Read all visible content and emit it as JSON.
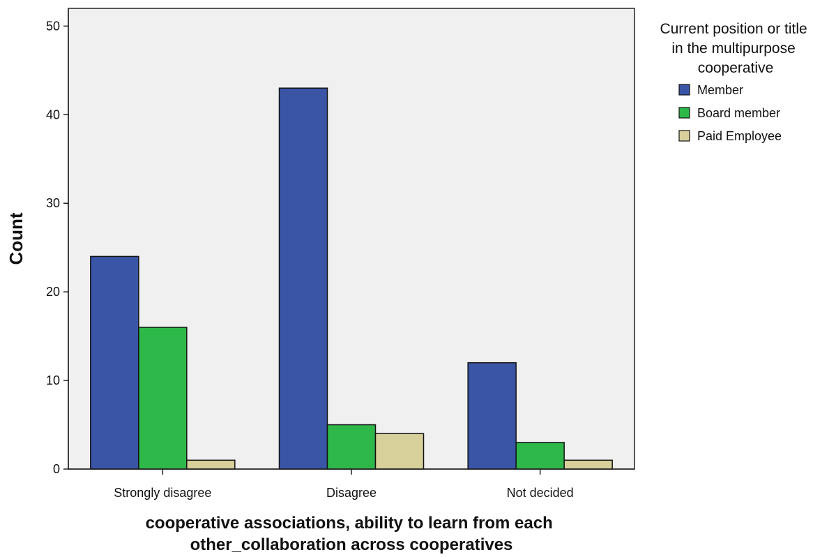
{
  "chart_data": {
    "type": "bar",
    "categories": [
      "Strongly disagree",
      "Disagree",
      "Not decided"
    ],
    "series": [
      {
        "name": "Member",
        "values": [
          24,
          43,
          12
        ],
        "color": "#3a55a6"
      },
      {
        "name": "Board member",
        "values": [
          16,
          5,
          3
        ],
        "color": "#2fb84a"
      },
      {
        "name": "Paid Employee",
        "values": [
          1,
          4,
          1
        ],
        "color": "#d8d09a"
      }
    ],
    "xlabel_lines": [
      "cooperative associations, ability to learn from each",
      "other_collaboration across cooperatives"
    ],
    "ylabel": "Count",
    "ylim": [
      0,
      52
    ],
    "yticks": [
      0,
      10,
      20,
      30,
      40,
      50
    ],
    "legend_title_lines": [
      "Current position or title",
      "in the multipurpose",
      "cooperative"
    ],
    "legend_position": "right",
    "grid": false,
    "plot_background": "#f0f0f0"
  }
}
